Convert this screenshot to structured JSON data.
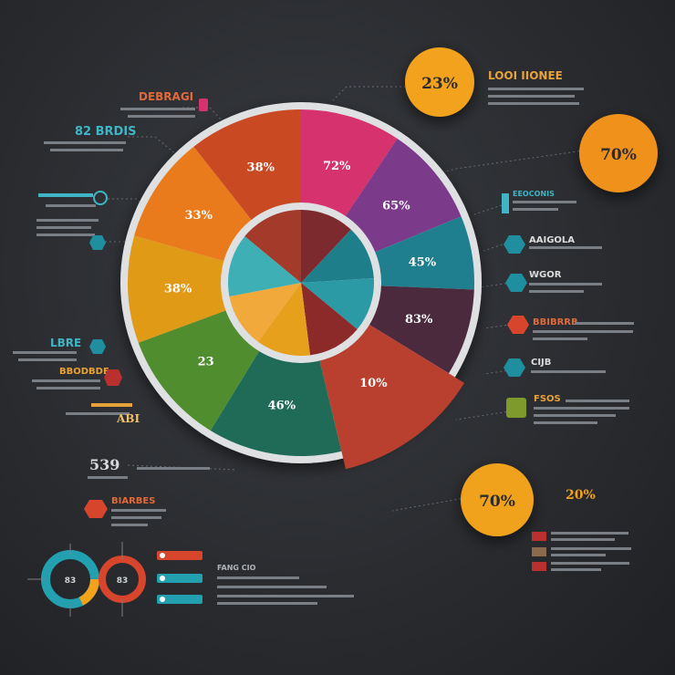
{
  "chart_data": {
    "type": "pie",
    "segments": [
      {
        "label": "72%",
        "value": 15,
        "color": "#d6336e"
      },
      {
        "label": "65%",
        "value": 15,
        "color": "#7b3a8a"
      },
      {
        "label": "45%",
        "value": 11,
        "color": "#1f7f8f"
      },
      {
        "label": "83%",
        "value": 13,
        "color": "#4a2a3c"
      },
      {
        "label": "10%",
        "value": 20,
        "color": "#b9402e"
      },
      {
        "label": "46%",
        "value": 20,
        "color": "#1f6b58"
      },
      {
        "label": "23",
        "value": 17,
        "color": "#4f8d2f"
      },
      {
        "label": "38%",
        "value": 16,
        "color": "#e09a16"
      },
      {
        "label": "33%",
        "value": 16,
        "color": "#e97b1c"
      },
      {
        "label": "38%",
        "value": 17,
        "color": "#c94a22"
      }
    ],
    "inner_segments": [
      {
        "value": 12,
        "color": "#7d2a2e"
      },
      {
        "value": 12,
        "color": "#1e7f8a"
      },
      {
        "value": 12,
        "color": "#2c9aa5"
      },
      {
        "value": 12,
        "color": "#8c2a2a"
      },
      {
        "value": 12,
        "color": "#e7a01c"
      },
      {
        "value": 12,
        "color": "#f0a93a"
      },
      {
        "value": 14,
        "color": "#3eb0b5"
      },
      {
        "value": 14,
        "color": "#a33a2a"
      }
    ],
    "bubbles": [
      {
        "label": "23%",
        "color": "#f2a21b"
      },
      {
        "label": "70%",
        "color": "#f0911b"
      },
      {
        "label": "70%",
        "color": "#f0a21b"
      }
    ],
    "donuts": [
      {
        "label": "83",
        "color": "#23a0b0"
      },
      {
        "label": "83",
        "color": "#d6452c"
      }
    ]
  },
  "labels": {
    "top_heading": "LOOI IIONEE",
    "top_left_heading": "DEBRAGI",
    "left_heading_1": "82 BRDIS",
    "left_heading_2": "LBRE",
    "left_heading_3": "BBODBDE",
    "left_value_1": "539",
    "left_value_2": "ABI",
    "left_badge_title": "BIARBES",
    "right_heading_1": "EEOCONIS",
    "right_heading_2": "AAIGOLA",
    "right_heading_3": "WGOR",
    "right_heading_4": "BBIBRRB",
    "right_heading_5": "CIJB",
    "right_heading_6": "FSOS",
    "right_pct": "20%",
    "bottom_caption": "FANG CIO"
  },
  "colors": {
    "bubble": "#f2a21b",
    "ring": "#dfe0e2",
    "teal": "#1f8f9f",
    "red": "#d6452c",
    "olive": "#7f9a2c"
  }
}
